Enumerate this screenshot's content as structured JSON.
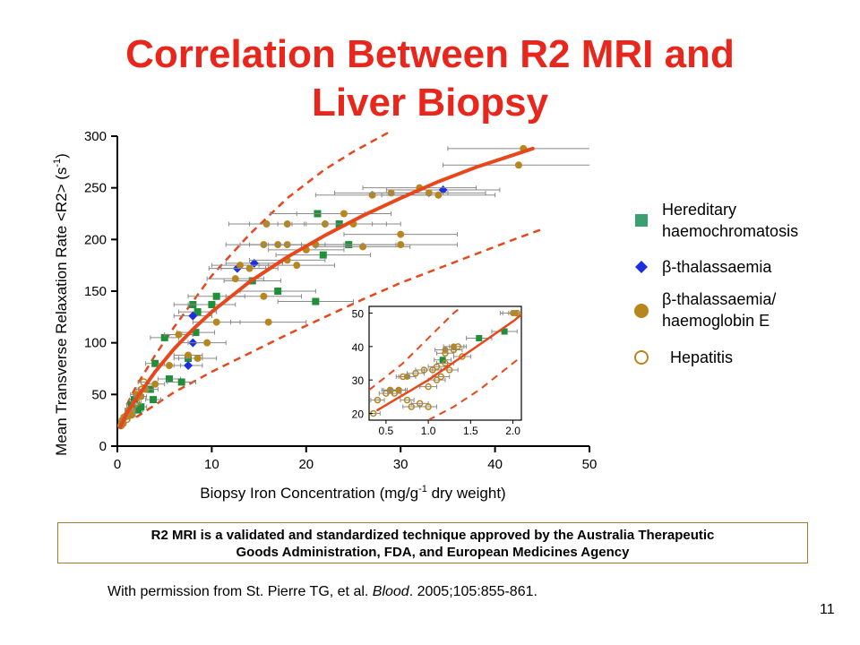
{
  "slide": {
    "title_line1": "Correlation Between R2 MRI and",
    "title_line2": "Liver Biopsy",
    "callout_line1": "R2 MRI is a validated and standardized technique approved by the Australia Therapeutic",
    "callout_line2": "Goods Administration, FDA, and European Medicines Agency",
    "footnote_pre": "With permission from St. Pierre TG, et al. ",
    "footnote_journal": "Blood",
    "footnote_post": ". 2005;105:855-861.",
    "page_number": "11"
  },
  "colors": {
    "title": "#e8261c",
    "fit_line": "#e8471c",
    "hh": "#1f8f3a",
    "bthal": "#1c2fe0",
    "bthal_hbe": "#b8861f",
    "hep": "#b8861f"
  },
  "legend": {
    "hh_line1": "Hereditary",
    "hh_line2": "haemochromatosis",
    "bthal": "β-thalassaemia",
    "bthal_hbe_line1": "β-thalassaemia/",
    "bthal_hbe_line2": "haemoglobin E",
    "hep": "Hepatitis"
  },
  "chart_data": [
    {
      "type": "scatter",
      "xlabel": "Biopsy Iron Concentration (mg/g",
      "xlabel_sup": "-1",
      "xlabel_post": " dry weight)",
      "ylabel": "Mean Transverse Relaxation Rate <R2> (s",
      "ylabel_sup": "-1",
      "ylabel_post": ")",
      "xlim": [
        0,
        50
      ],
      "ylim": [
        0,
        300
      ],
      "xticks": [
        0,
        10,
        20,
        30,
        40,
        50
      ],
      "yticks": [
        0,
        50,
        100,
        150,
        200,
        250,
        300
      ],
      "grid": false,
      "legend_position": "right",
      "fit_curve": [
        [
          0.3,
          18
        ],
        [
          1,
          32
        ],
        [
          2,
          46
        ],
        [
          4,
          72
        ],
        [
          6,
          94
        ],
        [
          8,
          113
        ],
        [
          10,
          130
        ],
        [
          14,
          159
        ],
        [
          18,
          183
        ],
        [
          22,
          204
        ],
        [
          26,
          223
        ],
        [
          30,
          240
        ],
        [
          34,
          256
        ],
        [
          38,
          270
        ],
        [
          42,
          282
        ],
        [
          44,
          288
        ]
      ],
      "upper_bound": [
        [
          1,
          40
        ],
        [
          2,
          58
        ],
        [
          4,
          88
        ],
        [
          6,
          115
        ],
        [
          8,
          140
        ],
        [
          10,
          165
        ],
        [
          14,
          205
        ],
        [
          18,
          240
        ],
        [
          22,
          268
        ],
        [
          25,
          285
        ],
        [
          29,
          305
        ]
      ],
      "lower_bound": [
        [
          2,
          28
        ],
        [
          4,
          40
        ],
        [
          6,
          52
        ],
        [
          8,
          62
        ],
        [
          10,
          72
        ],
        [
          14,
          90
        ],
        [
          18,
          108
        ],
        [
          22,
          125
        ],
        [
          26,
          142
        ],
        [
          30,
          158
        ],
        [
          34,
          172
        ],
        [
          38,
          186
        ],
        [
          42,
          200
        ],
        [
          45,
          210
        ]
      ],
      "series": [
        {
          "name": "Hereditary haemochromatosis",
          "marker": "square",
          "points": [
            [
              1.5,
              40
            ],
            [
              1.8,
              45
            ],
            [
              2.2,
              35
            ],
            [
              2.5,
              38
            ],
            [
              3.5,
              55
            ],
            [
              3.8,
              45
            ],
            [
              4,
              80
            ],
            [
              5,
              105
            ],
            [
              5.5,
              65
            ],
            [
              6.8,
              62
            ],
            [
              7.5,
              85
            ],
            [
              8,
              137
            ],
            [
              8.3,
              110
            ],
            [
              8.5,
              130
            ],
            [
              10,
              137
            ],
            [
              10.5,
              145
            ],
            [
              14.3,
              160
            ],
            [
              17,
              150
            ],
            [
              21,
              140
            ],
            [
              21.2,
              225
            ],
            [
              23.5,
              215
            ],
            [
              24.5,
              195
            ],
            [
              21.8,
              185
            ]
          ],
          "xerr": [
            0.5,
            0.5,
            0.5,
            0.6,
            0.8,
            0.8,
            1,
            1.5,
            1.2,
            1.5,
            1.5,
            2,
            2,
            2,
            2.5,
            3,
            3,
            4,
            4,
            5,
            5,
            5,
            5
          ]
        },
        {
          "name": "β-thalassaemia",
          "marker": "diamond",
          "points": [
            [
              7.5,
              78
            ],
            [
              8,
              100
            ],
            [
              8,
              126
            ],
            [
              12.7,
              172
            ],
            [
              14.5,
              177
            ],
            [
              34.5,
              248
            ]
          ],
          "xerr": [
            1.5,
            1.5,
            2,
            3,
            3,
            6
          ]
        },
        {
          "name": "β-thalassaemia/ haemoglobin E",
          "marker": "circle",
          "points": [
            [
              0.5,
              25
            ],
            [
              0.7,
              28
            ],
            [
              1,
              30
            ],
            [
              1.2,
              35
            ],
            [
              1.5,
              30
            ],
            [
              2,
              50
            ],
            [
              2.5,
              48
            ],
            [
              3,
              55
            ],
            [
              4,
              60
            ],
            [
              5.5,
              78
            ],
            [
              6.5,
              108
            ],
            [
              7.5,
              88
            ],
            [
              8.5,
              85
            ],
            [
              9.5,
              100
            ],
            [
              10.5,
              120
            ],
            [
              12.5,
              162
            ],
            [
              13,
              175
            ],
            [
              14,
              172
            ],
            [
              15.5,
              145
            ],
            [
              15.8,
              215
            ],
            [
              16,
              120
            ],
            [
              15.5,
              195
            ],
            [
              17,
              195
            ],
            [
              18,
              195
            ],
            [
              18,
              215
            ],
            [
              18,
              180
            ],
            [
              19,
              175
            ],
            [
              20,
              190
            ],
            [
              21,
              195
            ],
            [
              22,
              215
            ],
            [
              24,
              225
            ],
            [
              25,
              215
            ],
            [
              26,
              193
            ],
            [
              27,
              243
            ],
            [
              29,
              245
            ],
            [
              30,
              195
            ],
            [
              30,
              205
            ],
            [
              32,
              250
            ],
            [
              33,
              245
            ],
            [
              34,
              243
            ],
            [
              43,
              288
            ],
            [
              42.5,
              272
            ]
          ],
          "xerr": [
            0.3,
            0.3,
            0.3,
            0.4,
            0.4,
            0.6,
            0.6,
            0.8,
            1,
            1.2,
            1.5,
            1.5,
            2,
            2,
            2.5,
            3,
            3,
            3,
            4,
            4,
            4,
            4,
            4,
            4,
            4,
            4,
            4,
            4,
            5,
            5,
            5,
            5,
            5,
            6,
            6,
            6,
            6,
            6,
            6,
            6,
            8,
            8
          ]
        },
        {
          "name": "Hepatitis",
          "marker": "open-circle",
          "points": [
            [
              0.4,
              20
            ],
            [
              0.5,
              24
            ],
            [
              0.6,
              22
            ],
            [
              0.8,
              28
            ],
            [
              1,
              26
            ],
            [
              1.2,
              30
            ],
            [
              1.5,
              35
            ],
            [
              2,
              42
            ],
            [
              2.3,
              48
            ],
            [
              2.6,
              55
            ],
            [
              2.8,
              62
            ]
          ],
          "xerr": [
            0.2,
            0.2,
            0.2,
            0.3,
            0.3,
            0.3,
            0.4,
            0.5,
            0.5,
            0.6,
            0.6
          ]
        }
      ]
    },
    {
      "type": "scatter",
      "xlim": [
        0.3,
        2.1
      ],
      "ylim": [
        18,
        52
      ],
      "xticks": [
        0.5,
        1.0,
        1.5,
        2.0
      ],
      "xtick_labels": [
        "0.5",
        "1.0",
        "1.5",
        "2.0"
      ],
      "yticks": [
        20,
        30,
        40,
        50
      ],
      "grid": false,
      "fit_curve": [
        [
          0.4,
          21
        ],
        [
          0.6,
          24
        ],
        [
          0.8,
          27
        ],
        [
          1.0,
          30
        ],
        [
          1.2,
          33.5
        ],
        [
          1.4,
          37
        ],
        [
          1.6,
          40.5
        ],
        [
          1.8,
          44
        ],
        [
          2.0,
          47.5
        ],
        [
          2.1,
          49.5
        ]
      ],
      "upper_bound": [
        [
          0.3,
          27
        ],
        [
          0.5,
          31
        ],
        [
          0.7,
          35
        ],
        [
          0.9,
          40
        ],
        [
          1.1,
          45
        ],
        [
          1.3,
          50
        ],
        [
          1.4,
          52
        ]
      ],
      "lower_bound": [
        [
          1.0,
          18
        ],
        [
          1.3,
          22
        ],
        [
          1.6,
          27
        ],
        [
          1.9,
          33
        ],
        [
          2.1,
          37
        ]
      ],
      "series": [
        {
          "name": "Hereditary haemochromatosis",
          "marker": "square",
          "points": [
            [
              1.17,
              36
            ],
            [
              1.6,
              42.5
            ],
            [
              1.9,
              44.5
            ]
          ],
          "xerr": [
            0.1,
            0.15,
            0.15
          ]
        },
        {
          "name": "β-thalassaemia/ haemoglobin E",
          "marker": "circle",
          "points": [
            [
              0.55,
              27
            ],
            [
              0.65,
              27
            ],
            [
              0.75,
              31
            ],
            [
              1.2,
              39
            ],
            [
              1.3,
              40
            ],
            [
              2.0,
              50
            ],
            [
              2.03,
              50
            ]
          ],
          "xerr": [
            0.1,
            0.1,
            0.1,
            0.12,
            0.12,
            0.15,
            0.15
          ]
        },
        {
          "name": "Hepatitis",
          "marker": "open-circle",
          "points": [
            [
              0.35,
              20
            ],
            [
              0.4,
              24
            ],
            [
              0.5,
              26
            ],
            [
              0.55,
              27
            ],
            [
              0.6,
              26
            ],
            [
              0.65,
              27
            ],
            [
              0.7,
              31
            ],
            [
              0.75,
              24
            ],
            [
              0.8,
              22
            ],
            [
              0.85,
              32
            ],
            [
              0.9,
              23
            ],
            [
              0.95,
              33
            ],
            [
              1.0,
              22
            ],
            [
              1.0,
              28
            ],
            [
              1.05,
              33
            ],
            [
              1.1,
              30
            ],
            [
              1.1,
              34
            ],
            [
              1.15,
              31
            ],
            [
              1.2,
              35
            ],
            [
              1.2,
              38
            ],
            [
              1.25,
              33
            ],
            [
              1.3,
              39
            ],
            [
              1.35,
              40
            ],
            [
              1.4,
              37
            ],
            [
              2.05,
              50
            ]
          ],
          "xerr": [
            0.08,
            0.08,
            0.08,
            0.08,
            0.08,
            0.08,
            0.08,
            0.08,
            0.1,
            0.1,
            0.1,
            0.1,
            0.1,
            0.1,
            0.1,
            0.1,
            0.1,
            0.1,
            0.1,
            0.1,
            0.1,
            0.1,
            0.1,
            0.1,
            0.1
          ]
        }
      ]
    }
  ]
}
